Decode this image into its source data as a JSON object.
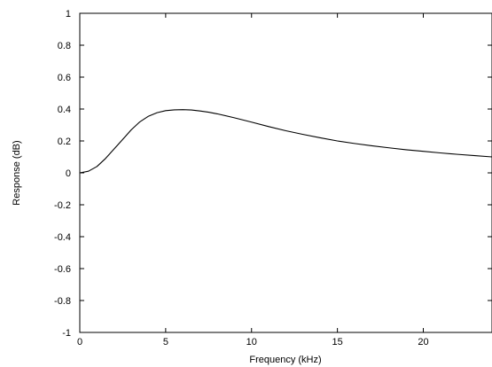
{
  "chart_data": {
    "type": "line",
    "title": "",
    "xlabel": "Frequency (kHz)",
    "ylabel": "Response (dB)",
    "xlim": [
      0,
      24
    ],
    "ylim": [
      -1,
      1
    ],
    "x_ticks": [
      0,
      5,
      10,
      15,
      20
    ],
    "x_tick_labels": [
      "0",
      "5",
      "10",
      "15",
      "20"
    ],
    "y_ticks": [
      1,
      0.8,
      0.6,
      0.4,
      0.2,
      0,
      -0.2,
      -0.4,
      -0.6,
      -0.8,
      -1
    ],
    "y_tick_labels": [
      "1",
      "0.8",
      "0.6",
      "0.4",
      "0.2",
      "0",
      "-0.2",
      "-0.4",
      "-0.6",
      "-0.8",
      "-1"
    ],
    "grid": false,
    "legend": "none",
    "line_color": "#000000",
    "series": [
      {
        "x": [
          0,
          0.5,
          1,
          1.5,
          2,
          2.5,
          3,
          3.5,
          4,
          4.5,
          5,
          5.5,
          6,
          6.5,
          7,
          7.5,
          8,
          9,
          10,
          11,
          12,
          13,
          14,
          15,
          16,
          17,
          18,
          19,
          20,
          21,
          22,
          23,
          24
        ],
        "values": [
          0,
          0.01,
          0.04,
          0.09,
          0.15,
          0.21,
          0.27,
          0.32,
          0.355,
          0.377,
          0.39,
          0.395,
          0.396,
          0.394,
          0.388,
          0.38,
          0.37,
          0.345,
          0.318,
          0.29,
          0.264,
          0.241,
          0.22,
          0.2,
          0.184,
          0.17,
          0.157,
          0.145,
          0.135,
          0.125,
          0.116,
          0.108,
          0.1
        ]
      }
    ]
  }
}
